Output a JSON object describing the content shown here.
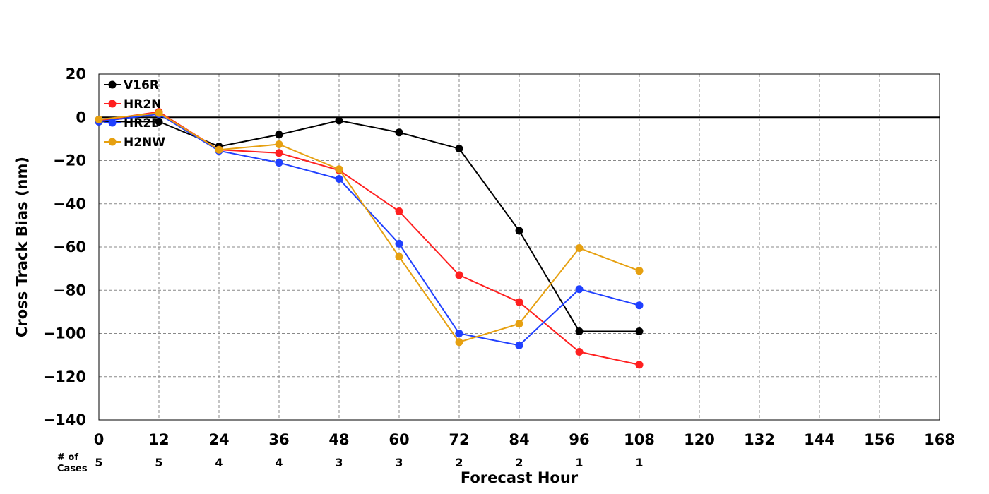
{
  "chart_data": {
    "type": "line",
    "xlabel": "Forecast Hour",
    "ylabel": "Cross Track Bias (nm)",
    "xlim": [
      0,
      168
    ],
    "ylim": [
      -140,
      20
    ],
    "x_ticks": [
      0,
      12,
      24,
      36,
      48,
      60,
      72,
      84,
      96,
      108,
      120,
      132,
      144,
      156,
      168
    ],
    "y_ticks": [
      20,
      0,
      -20,
      -40,
      -60,
      -80,
      -100,
      -120,
      -140
    ],
    "grid": "dashed",
    "legend_position": "top-left",
    "zero_line": true,
    "series": [
      {
        "name": "V16R",
        "color": "#000000",
        "x": [
          0,
          12,
          24,
          36,
          48,
          60,
          72,
          84,
          96,
          108
        ],
        "values": [
          -2,
          -2,
          -13.5,
          -8,
          -1.5,
          -7,
          -14.5,
          -52.5,
          -99,
          -99
        ]
      },
      {
        "name": "HR2N",
        "color": "#ff2020",
        "x": [
          0,
          12,
          24,
          36,
          48,
          60,
          72,
          84,
          96,
          108
        ],
        "values": [
          -1.5,
          2.5,
          -15,
          -16.5,
          -24.5,
          -43.5,
          -73,
          -85.5,
          -108.5,
          -114.5
        ]
      },
      {
        "name": "HR2D",
        "color": "#2040ff",
        "x": [
          0,
          12,
          24,
          36,
          48,
          60,
          72,
          84,
          96,
          108
        ],
        "values": [
          -2,
          1.5,
          -15.5,
          -21,
          -28.5,
          -58.5,
          -100,
          -105.5,
          -79.5,
          -87
        ]
      },
      {
        "name": "H2NW",
        "color": "#e6a010",
        "x": [
          0,
          12,
          24,
          36,
          48,
          60,
          72,
          84,
          96,
          108
        ],
        "values": [
          -1,
          2,
          -15,
          -12.5,
          -24,
          -64.5,
          -104,
          -95.5,
          -60.5,
          -71
        ]
      }
    ],
    "cases": {
      "label_line1": "# of",
      "label_line2": "Cases",
      "x": [
        0,
        12,
        24,
        36,
        48,
        60,
        72,
        84,
        96,
        108
      ],
      "values": [
        "5",
        "5",
        "4",
        "4",
        "3",
        "3",
        "2",
        "2",
        "1",
        "1"
      ]
    }
  }
}
